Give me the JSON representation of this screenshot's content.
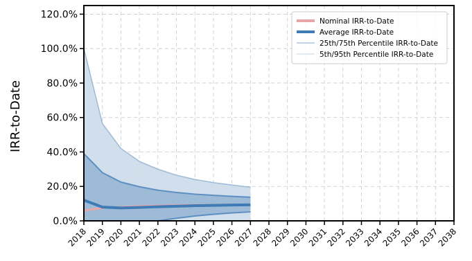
{
  "chart_data": {
    "type": "area",
    "ylabel": "IRR-to-Date",
    "xlabel": "",
    "xlim": [
      2018,
      2038
    ],
    "ylim": [
      0.0,
      1.25
    ],
    "yticks": [
      0.0,
      0.2,
      0.4,
      0.6,
      0.8,
      1.0,
      1.2
    ],
    "ytick_labels": [
      "0.0%",
      "20.0%",
      "40.0%",
      "60.0%",
      "80.0%",
      "100.0%",
      "120.0%"
    ],
    "xticks": [
      2018,
      2019,
      2020,
      2021,
      2022,
      2023,
      2024,
      2025,
      2026,
      2027,
      2028,
      2029,
      2030,
      2031,
      2032,
      2033,
      2034,
      2035,
      2036,
      2037,
      2038
    ],
    "xtick_labels": [
      "2018",
      "2019",
      "2020",
      "2021",
      "2022",
      "2023",
      "2024",
      "2025",
      "2026",
      "2027",
      "2028",
      "2029",
      "2030",
      "2031",
      "2032",
      "2033",
      "2034",
      "2035",
      "2036",
      "2037",
      "2038"
    ],
    "grid": true,
    "legend_position": "top-right",
    "legend": [
      {
        "label": "Nominal IRR-to-Date",
        "color": "#e8a6a6",
        "style": "thick"
      },
      {
        "label": "Average IRR-to-Date",
        "color": "#3f7bb5",
        "style": "thick"
      },
      {
        "label": "25th/75th Percentile IRR-to-Date",
        "color": "#9ab8d6",
        "style": "thin"
      },
      {
        "label": "5th/95th Percentile IRR-to-Date",
        "color": "#cfdcea",
        "style": "thin"
      }
    ],
    "x": [
      2018,
      2019,
      2020,
      2021,
      2022,
      2023,
      2024,
      2025,
      2026,
      2027
    ],
    "series": [
      {
        "name": "Nominal IRR-to-Date",
        "values": [
          0.06,
          0.075,
          0.08,
          0.085,
          0.088,
          0.09,
          0.092,
          0.093,
          0.094,
          0.095
        ]
      },
      {
        "name": "Average IRR-to-Date",
        "values": [
          0.12,
          0.08,
          0.075,
          0.078,
          0.082,
          0.085,
          0.088,
          0.09,
          0.092,
          0.093
        ]
      },
      {
        "name": "25th Percentile",
        "values": [
          0.0,
          0.0,
          0.0,
          0.0,
          0.0,
          0.015,
          0.028,
          0.038,
          0.046,
          0.052
        ]
      },
      {
        "name": "75th Percentile",
        "values": [
          0.39,
          0.28,
          0.225,
          0.198,
          0.178,
          0.165,
          0.155,
          0.148,
          0.142,
          0.137
        ]
      },
      {
        "name": "5th Percentile",
        "values": [
          0.0,
          0.0,
          0.0,
          0.0,
          0.0,
          0.0,
          0.0,
          0.0,
          0.0,
          0.0
        ]
      },
      {
        "name": "95th Percentile",
        "values": [
          1.0,
          0.565,
          0.42,
          0.345,
          0.3,
          0.265,
          0.24,
          0.222,
          0.208,
          0.195
        ]
      }
    ],
    "colors": {
      "band_95": "#cfdcea",
      "band_95_edge": "#9fbad6",
      "band_75": "#9ab8d6",
      "band_75_edge": "#5d8fc2",
      "average": "#3f7bb5",
      "nominal": "#e8a6a6",
      "grid": "#c8c8c8"
    }
  }
}
